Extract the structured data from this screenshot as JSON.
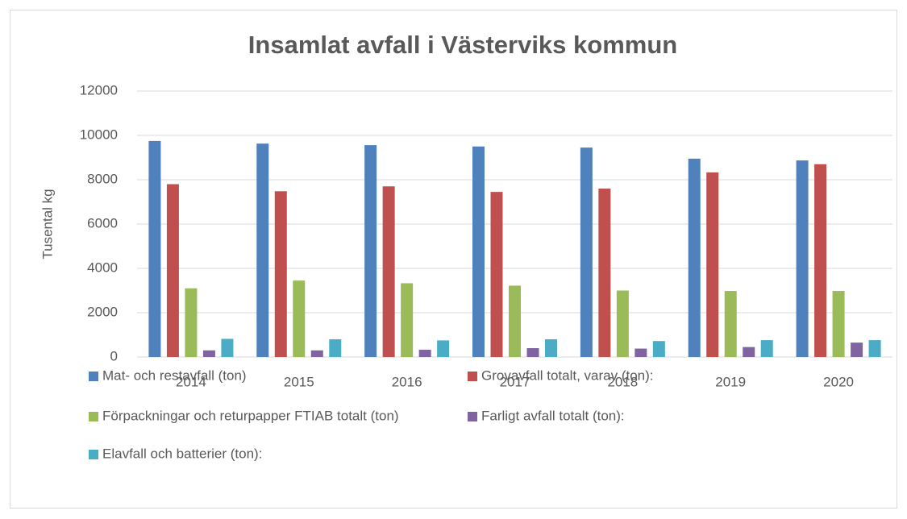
{
  "chart_data": {
    "type": "bar",
    "title": "Insamlat avfall i Västerviks kommun",
    "y_label": "Tusental kg",
    "categories": [
      "2014",
      "2015",
      "2016",
      "2017",
      "2018",
      "2019",
      "2020"
    ],
    "series": [
      {
        "name": "Mat- och restavfall (ton)",
        "color": "#4f81bd",
        "values": [
          9750,
          9630,
          9560,
          9500,
          9450,
          8950,
          8870
        ]
      },
      {
        "name": "Grovavfall totalt, varav (ton):",
        "color": "#c0504d",
        "values": [
          7800,
          7480,
          7700,
          7450,
          7600,
          8330,
          8700
        ]
      },
      {
        "name": "Förpackningar och returpapper FTIAB totalt (ton)",
        "color": "#9bbb59",
        "values": [
          3100,
          3450,
          3330,
          3220,
          3000,
          2980,
          2980
        ]
      },
      {
        "name": "Farligt avfall totalt (ton):",
        "color": "#8064a2",
        "values": [
          300,
          300,
          330,
          400,
          380,
          450,
          650
        ]
      },
      {
        "name": "Elavfall och batterier (ton):",
        "color": "#4bacc6",
        "values": [
          820,
          800,
          750,
          800,
          720,
          760,
          760
        ]
      }
    ],
    "ylim": [
      0,
      12000
    ],
    "yticks": [
      0,
      2000,
      4000,
      6000,
      8000,
      10000,
      12000
    ],
    "grid": true,
    "legend": "bottom"
  }
}
